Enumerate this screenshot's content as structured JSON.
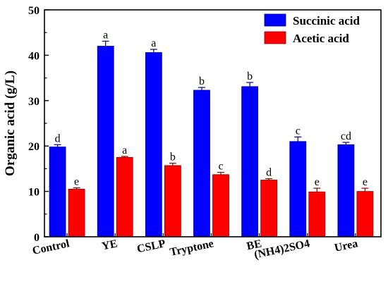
{
  "chart_data": {
    "type": "bar",
    "title": "",
    "xlabel": "",
    "ylabel": "Organic acid (g/L)",
    "ylim": [
      0,
      50
    ],
    "yticks": [
      0,
      10,
      20,
      30,
      40,
      50
    ],
    "legend_position": "top-right",
    "categories": [
      "Control",
      "YE",
      "CSLP",
      "Tryptone",
      "BE",
      "(NH4)2SO4",
      "Urea"
    ],
    "series": [
      {
        "name": "Succinic acid",
        "color": "#0000ff",
        "values": [
          19.8,
          42.0,
          40.6,
          32.3,
          33.1,
          21.0,
          20.3
        ],
        "errors": [
          0.5,
          1.1,
          0.7,
          0.6,
          0.9,
          1.0,
          0.5
        ],
        "labels": [
          "d",
          "a",
          "a",
          "b",
          "b",
          "c",
          "cd"
        ]
      },
      {
        "name": "Acetic acid",
        "color": "#ff0000",
        "values": [
          10.5,
          17.5,
          15.7,
          13.7,
          12.5,
          9.9,
          10.0
        ],
        "errors": [
          0.3,
          0.2,
          0.5,
          0.5,
          0.3,
          0.8,
          0.7
        ],
        "labels": [
          "e",
          "a",
          "b",
          "c",
          "d",
          "e",
          "e"
        ]
      }
    ]
  }
}
